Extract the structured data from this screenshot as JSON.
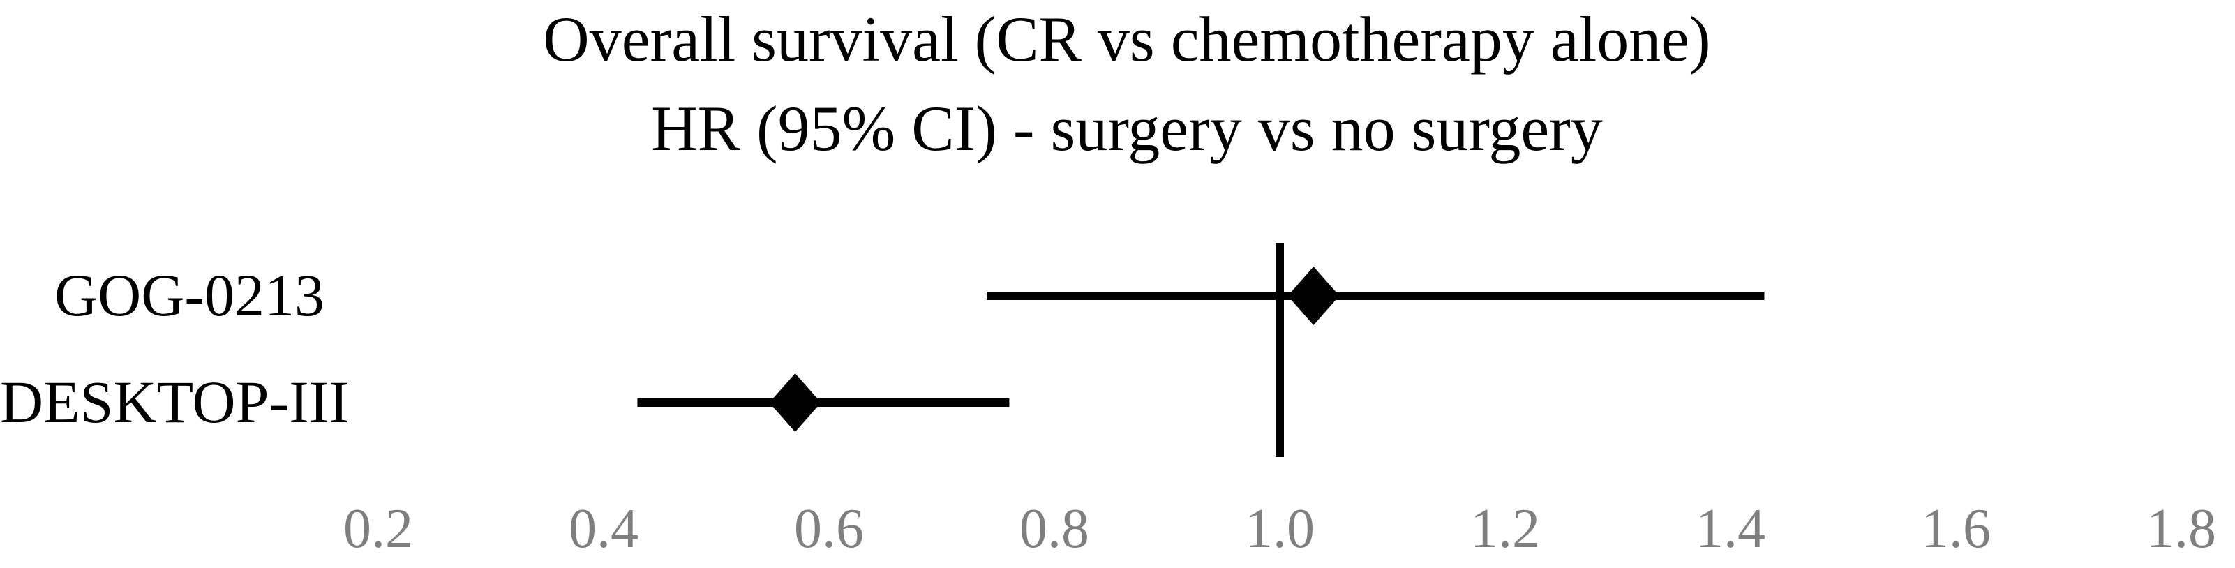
{
  "title": {
    "line1": "Overall survival (CR vs chemotherapy alone)",
    "line2": "HR (95% CI) - surgery vs no surgery"
  },
  "chart_data": {
    "type": "scatter",
    "subtype": "forest-plot",
    "title": "Overall survival (CR vs chemotherapy alone)",
    "subtitle": "HR (95% CI) - surgery vs no surgery",
    "orientation": "horizontal",
    "marker": "diamond",
    "xlabel": "",
    "ylabel": "",
    "x_axis": {
      "ticks": [
        0.2,
        0.4,
        0.6,
        0.8,
        1.0,
        1.2,
        1.4,
        1.6,
        1.8
      ],
      "range": [
        0.1,
        1.9
      ],
      "grid": false,
      "axis_line": false,
      "tick_marks": false
    },
    "reference_line_x": 1.0,
    "studies": [
      {
        "label": "GOG-0213",
        "hr": 1.03,
        "ci_low": 0.74,
        "ci_high": 1.43
      },
      {
        "label": "DESKTOP-III",
        "hr": 0.57,
        "ci_low": 0.43,
        "ci_high": 0.76
      }
    ],
    "legend_position": "none",
    "colors": {
      "data": "#000000",
      "title_text": "#000000",
      "tick_text": "#7f7f7f",
      "background": "#ffffff"
    }
  }
}
